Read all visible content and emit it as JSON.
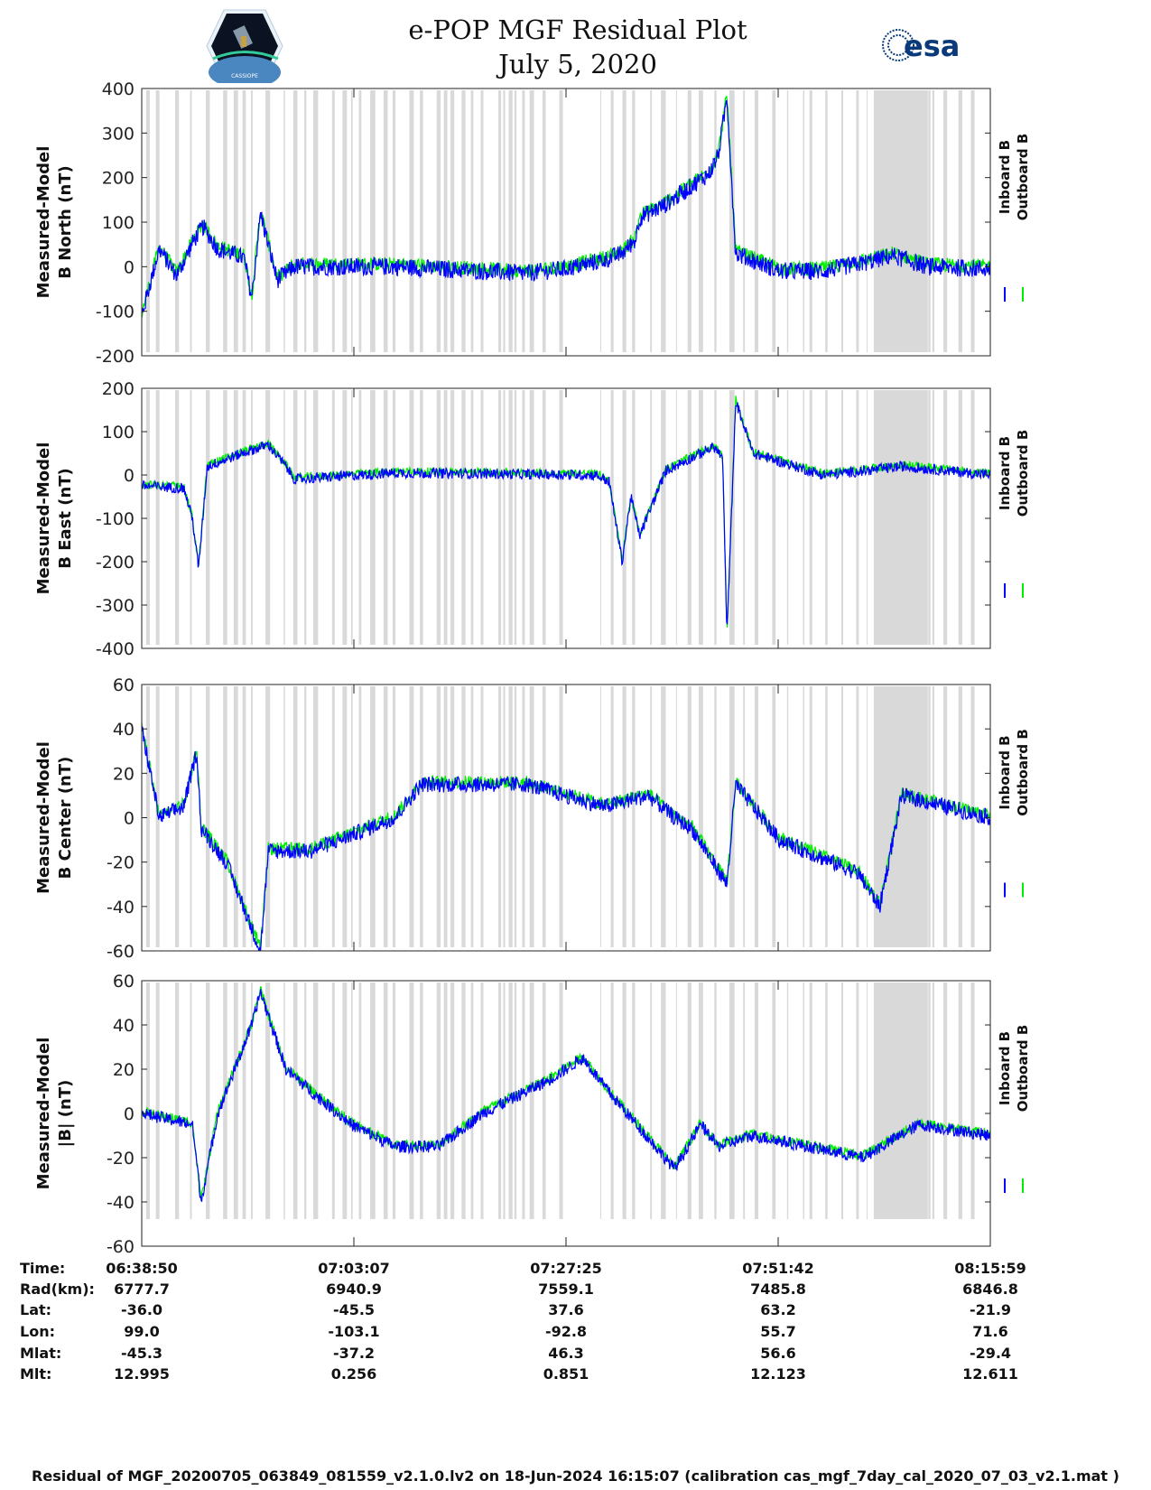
{
  "header": {
    "title": "e-POP MGF Residual Plot",
    "date": "July 5, 2020",
    "logo_left_text": "CASSIOPE",
    "logo_right_text": "esa"
  },
  "colors": {
    "inboard": "#0000ff",
    "outboard": "#00ee00",
    "flag_band": "#d9d9d9"
  },
  "chart_data": [
    {
      "type": "line",
      "ylabel": [
        "Measured-Model",
        "B North (nT)"
      ],
      "ylim": [
        -200,
        400
      ],
      "yticks": [
        400,
        300,
        200,
        100,
        0,
        -100,
        -200
      ],
      "legend": [
        "Inboard B",
        "Outboard B"
      ],
      "legend_placement": "right",
      "x_unit": "minutes since 06:38:50",
      "points": [
        [
          0,
          -110
        ],
        [
          2,
          40
        ],
        [
          4,
          -20
        ],
        [
          6,
          60
        ],
        [
          7,
          90
        ],
        [
          8.7,
          40
        ],
        [
          11.7,
          20
        ],
        [
          12.6,
          -70
        ],
        [
          13.6,
          120
        ],
        [
          15.5,
          -30
        ],
        [
          17.5,
          0
        ],
        [
          29,
          0
        ],
        [
          44,
          -15
        ],
        [
          48.5,
          -5
        ],
        [
          53,
          15
        ],
        [
          55,
          30
        ],
        [
          56.5,
          60
        ],
        [
          57,
          110
        ],
        [
          60,
          140
        ],
        [
          65,
          210
        ],
        [
          66,
          250
        ],
        [
          67,
          380
        ],
        [
          68,
          30
        ],
        [
          73,
          -10
        ],
        [
          78,
          -10
        ],
        [
          83,
          10
        ],
        [
          86,
          25
        ],
        [
          90,
          0
        ],
        [
          97.15,
          -5
        ]
      ]
    },
    {
      "type": "line",
      "ylabel": [
        "Measured-Model",
        "B East (nT)"
      ],
      "ylim": [
        -400,
        200
      ],
      "yticks": [
        200,
        100,
        0,
        -100,
        -200,
        -300,
        -400
      ],
      "legend": [
        "Inboard B",
        "Outboard B"
      ],
      "legend_placement": "right",
      "x_unit": "minutes since 06:38:50",
      "points": [
        [
          0,
          -25
        ],
        [
          4.8,
          -30
        ],
        [
          5.8,
          -100
        ],
        [
          6.5,
          -215
        ],
        [
          7.5,
          20
        ],
        [
          11.5,
          50
        ],
        [
          14.5,
          70
        ],
        [
          16.5,
          20
        ],
        [
          17.5,
          -10
        ],
        [
          29,
          5
        ],
        [
          52,
          0
        ],
        [
          53.5,
          -15
        ],
        [
          55,
          -200
        ],
        [
          56,
          -50
        ],
        [
          57,
          -140
        ],
        [
          60,
          10
        ],
        [
          64,
          50
        ],
        [
          65.5,
          65
        ],
        [
          66.5,
          40
        ],
        [
          67,
          -370
        ],
        [
          68,
          170
        ],
        [
          70,
          50
        ],
        [
          78,
          0
        ],
        [
          83,
          10
        ],
        [
          87,
          20
        ],
        [
          97.15,
          0
        ]
      ]
    },
    {
      "type": "line",
      "ylabel": [
        "Measured-Model",
        "B Center (nT)"
      ],
      "ylim": [
        -60,
        60
      ],
      "yticks": [
        60,
        40,
        20,
        0,
        -20,
        -40,
        -60
      ],
      "legend": [
        "Inboard B",
        "Outboard B"
      ],
      "legend_placement": "right",
      "x_unit": "minutes since 06:38:50",
      "points": [
        [
          0,
          40
        ],
        [
          2,
          0
        ],
        [
          4.8,
          5
        ],
        [
          6.3,
          30
        ],
        [
          6.8,
          -5
        ],
        [
          9.7,
          -20
        ],
        [
          12.6,
          -50
        ],
        [
          13.6,
          -60
        ],
        [
          14.5,
          -15
        ],
        [
          19.4,
          -15
        ],
        [
          29,
          0
        ],
        [
          32,
          15
        ],
        [
          44,
          15
        ],
        [
          53,
          5
        ],
        [
          58,
          10
        ],
        [
          61,
          0
        ],
        [
          63,
          -5
        ],
        [
          67,
          -30
        ],
        [
          68,
          15
        ],
        [
          73,
          -10
        ],
        [
          82,
          -25
        ],
        [
          84.5,
          -40
        ],
        [
          87,
          10
        ],
        [
          92,
          5
        ],
        [
          97.15,
          0
        ]
      ]
    },
    {
      "type": "line",
      "ylabel": [
        "Measured-Model",
        "|B| (nT)"
      ],
      "ylim": [
        -60,
        60
      ],
      "yticks": [
        60,
        40,
        20,
        0,
        -20,
        -40,
        -60
      ],
      "legend": [
        "Inboard B",
        "Outboard B"
      ],
      "legend_placement": "right",
      "x_unit": "minutes since 06:38:50",
      "points": [
        [
          0,
          0
        ],
        [
          5.8,
          -5
        ],
        [
          6.8,
          -40
        ],
        [
          8.7,
          0
        ],
        [
          12.6,
          40
        ],
        [
          13.6,
          55
        ],
        [
          16.5,
          20
        ],
        [
          19.4,
          10
        ],
        [
          24,
          -5
        ],
        [
          29,
          -15
        ],
        [
          34,
          -15
        ],
        [
          39,
          0
        ],
        [
          46.6,
          15
        ],
        [
          50.5,
          25
        ],
        [
          53.4,
          10
        ],
        [
          61,
          -25
        ],
        [
          64,
          -5
        ],
        [
          66,
          -15
        ],
        [
          70,
          -10
        ],
        [
          82.5,
          -20
        ],
        [
          89,
          -5
        ],
        [
          97.15,
          -10
        ]
      ]
    }
  ],
  "xaxis": {
    "row_labels": [
      "Time:",
      "Rad(km):",
      "Lat:",
      "Lon:",
      "Mlat:",
      "Mlt:"
    ],
    "columns": [
      [
        "06:38:50",
        "6777.7",
        "-36.0",
        "99.0",
        "-45.3",
        "12.995"
      ],
      [
        "07:03:07",
        "6940.9",
        "-45.5",
        "-103.1",
        "-37.2",
        "0.256"
      ],
      [
        "07:27:25",
        "7559.1",
        "37.6",
        "-92.8",
        "46.3",
        "0.851"
      ],
      [
        "07:51:42",
        "7485.8",
        "63.2",
        "55.7",
        "56.6",
        "12.123"
      ],
      [
        "08:15:59",
        "6846.8",
        "-21.9",
        "71.6",
        "-29.4",
        "12.611"
      ]
    ],
    "range_minutes": [
      0,
      97.15
    ]
  },
  "footer": "Residual of MGF_20200705_063849_081559_v2.1.0.lv2 on 18-Jun-2024 16:15:07 (calibration cas_mgf_7day_cal_2020_07_03_v2.1.mat )"
}
